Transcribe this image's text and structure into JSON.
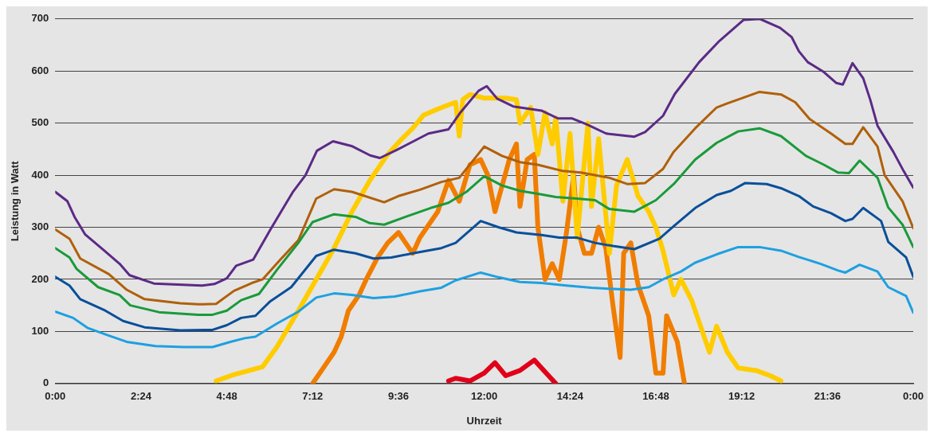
{
  "chart_data": {
    "type": "line",
    "xlabel": "Uhrzeit",
    "ylabel": "Leistung in Watt",
    "xlim": [
      0,
      24
    ],
    "ylim": [
      0,
      700
    ],
    "xticks": [
      {
        "value": 0,
        "label": "0:00"
      },
      {
        "value": 2.4,
        "label": "2:24"
      },
      {
        "value": 4.8,
        "label": "4:48"
      },
      {
        "value": 7.2,
        "label": "7:12"
      },
      {
        "value": 9.6,
        "label": "9:36"
      },
      {
        "value": 12,
        "label": "12:00"
      },
      {
        "value": 14.4,
        "label": "14:24"
      },
      {
        "value": 16.8,
        "label": "16:48"
      },
      {
        "value": 19.2,
        "label": "19:12"
      },
      {
        "value": 21.6,
        "label": "21:36"
      },
      {
        "value": 24,
        "label": "0:00"
      }
    ],
    "yticks": [
      0,
      100,
      200,
      300,
      400,
      500,
      600,
      700
    ],
    "grid": "y",
    "legend": false,
    "marker": "none",
    "line_style": "solid",
    "series": [
      {
        "color": "#1ea0e0",
        "x": [
          0,
          0.5,
          0.9,
          1.5,
          2,
          2.8,
          3.6,
          4.4,
          4.9,
          5.3,
          5.6,
          6.2,
          6.8,
          7.3,
          7.8,
          8.3,
          8.9,
          9.5,
          10.2,
          10.8,
          11.2,
          11.9,
          12.4,
          13,
          13.6,
          14.3,
          15,
          15.5,
          16.1,
          16.6,
          17,
          17.5,
          17.9,
          18.5,
          19.1,
          19.7,
          20.3,
          20.8,
          21.4,
          21.9,
          22.1,
          22.5,
          23,
          23.3,
          23.8,
          24
        ],
        "values": [
          138,
          126,
          107,
          92,
          80,
          72,
          70,
          70,
          80,
          87,
          90,
          115,
          138,
          165,
          173,
          170,
          164,
          167,
          177,
          184,
          198,
          213,
          204,
          195,
          193,
          188,
          184,
          182,
          180,
          185,
          200,
          215,
          232,
          248,
          262,
          262,
          255,
          243,
          230,
          217,
          213,
          228,
          215,
          185,
          168,
          136
        ]
      },
      {
        "color": "#0a4f9a",
        "x": [
          0,
          0.4,
          0.7,
          1.4,
          1.9,
          2.5,
          3.5,
          4.4,
          4.8,
          5.2,
          5.6,
          6,
          6.6,
          7.3,
          7.8,
          8.4,
          8.9,
          9.4,
          10,
          10.8,
          11.2,
          11.9,
          12.4,
          12.9,
          13.6,
          14.1,
          14.6,
          15.1,
          15.6,
          16.2,
          16.9,
          17.3,
          17.9,
          18.5,
          18.9,
          19.3,
          19.9,
          20.3,
          20.8,
          21.2,
          21.7,
          22.1,
          22.3,
          22.6,
          23.1,
          23.3,
          23.8,
          24
        ],
        "values": [
          205,
          188,
          162,
          140,
          120,
          108,
          102,
          103,
          112,
          126,
          130,
          157,
          185,
          245,
          257,
          250,
          240,
          242,
          250,
          260,
          270,
          312,
          300,
          290,
          285,
          280,
          280,
          270,
          264,
          258,
          278,
          302,
          337,
          362,
          370,
          385,
          383,
          375,
          360,
          340,
          327,
          312,
          316,
          337,
          312,
          272,
          242,
          205
        ]
      },
      {
        "color": "#1a9a3a",
        "x": [
          0,
          0.4,
          0.6,
          1.2,
          1.8,
          2.1,
          2.9,
          4,
          4.4,
          4.8,
          5.2,
          5.7,
          6.2,
          6.8,
          7.2,
          7.8,
          8.4,
          8.8,
          9.2,
          9.8,
          10.5,
          11,
          11.5,
          12,
          12.5,
          13,
          13.6,
          14,
          14.6,
          15.1,
          15.5,
          16.2,
          16.8,
          17.3,
          17.9,
          18.5,
          19.1,
          19.7,
          20.3,
          21,
          21.5,
          21.9,
          22.2,
          22.5,
          23,
          23.3,
          23.7,
          24
        ],
        "values": [
          260,
          242,
          220,
          185,
          170,
          150,
          137,
          132,
          132,
          140,
          160,
          172,
          218,
          270,
          310,
          325,
          320,
          308,
          305,
          320,
          337,
          347,
          368,
          398,
          380,
          370,
          363,
          358,
          355,
          352,
          335,
          330,
          352,
          383,
          430,
          462,
          484,
          490,
          475,
          437,
          420,
          405,
          404,
          428,
          395,
          338,
          305,
          262
        ]
      },
      {
        "color": "#b0600a",
        "x": [
          0,
          0.4,
          0.7,
          1.5,
          2,
          2.5,
          3.5,
          4,
          4.5,
          5,
          5.5,
          5.8,
          6.3,
          6.8,
          7.3,
          7.8,
          8.3,
          9.2,
          9.6,
          10.2,
          10.8,
          11.3,
          12,
          12.5,
          13,
          13.5,
          14.2,
          14.7,
          15.5,
          16,
          16.5,
          17,
          17.3,
          17.9,
          18.5,
          18.8,
          19.3,
          19.7,
          20.3,
          20.7,
          21.1,
          21.7,
          22.1,
          22.3,
          22.6,
          23,
          23.2,
          23.7,
          24
        ],
        "values": [
          296,
          278,
          240,
          210,
          180,
          162,
          154,
          152,
          153,
          178,
          193,
          200,
          238,
          275,
          355,
          373,
          368,
          348,
          360,
          372,
          387,
          395,
          455,
          437,
          425,
          420,
          408,
          405,
          395,
          383,
          385,
          412,
          445,
          490,
          530,
          538,
          550,
          560,
          555,
          540,
          508,
          480,
          460,
          460,
          492,
          455,
          400,
          350,
          298
        ]
      },
      {
        "color": "#5b2a86",
        "x": [
          0,
          0.34,
          0.54,
          0.84,
          1.36,
          1.8,
          2.08,
          2.76,
          4.1,
          4.45,
          4.8,
          5.06,
          5.54,
          6.03,
          6.64,
          7,
          7.32,
          7.77,
          8.29,
          8.81,
          9.08,
          9.54,
          10.44,
          11,
          11.34,
          11.84,
          12.07,
          12.36,
          12.81,
          13.6,
          14.06,
          14.46,
          14.85,
          15.41,
          16.2,
          16.5,
          17,
          17.33,
          18.01,
          18.58,
          19.25,
          19.71,
          20.27,
          20.6,
          20.8,
          21.05,
          21.5,
          21.85,
          22.03,
          22.3,
          22.6,
          22.8,
          23,
          23.44,
          23.73,
          24
        ],
        "values": [
          368,
          350,
          320,
          286,
          256,
          230,
          208,
          192,
          188,
          191,
          202,
          226,
          238,
          297,
          367,
          400,
          447,
          465,
          456,
          438,
          433,
          448,
          480,
          488,
          521,
          562,
          571,
          547,
          532,
          524,
          509,
          509,
          498,
          480,
          474,
          483,
          514,
          556,
          617,
          658,
          698,
          700,
          683,
          665,
          638,
          617,
          598,
          577,
          574,
          615,
          586,
          544,
          495,
          445,
          408,
          376
        ]
      },
      {
        "color": "#ffcc00",
        "x": [
          4.5,
          5,
          5.8,
          6.2,
          6.8,
          7.3,
          7.8,
          8.3,
          8.8,
          9.3,
          9.7,
          10,
          10.3,
          10.7,
          11,
          11.2,
          11.3,
          11.4,
          11.6,
          12,
          12.6,
          12.9,
          13,
          13.3,
          13.5,
          13.7,
          13.9,
          14,
          14.2,
          14.4,
          14.6,
          14.9,
          15,
          15.2,
          15.5,
          15.7,
          16,
          16.3,
          16.6,
          16.8,
          17,
          17.3,
          17.5,
          17.8,
          18.1,
          18.3,
          18.5,
          18.8,
          19.1,
          19.6,
          20,
          20.3
        ],
        "values": [
          5,
          17,
          32,
          70,
          140,
          200,
          260,
          330,
          390,
          440,
          470,
          490,
          515,
          527,
          535,
          540,
          475,
          545,
          555,
          548,
          548,
          545,
          500,
          530,
          440,
          520,
          460,
          510,
          350,
          480,
          280,
          500,
          340,
          470,
          250,
          380,
          430,
          360,
          330,
          300,
          255,
          170,
          200,
          160,
          100,
          60,
          110,
          60,
          30,
          25,
          15,
          5
        ]
      },
      {
        "color": "#f07d00",
        "x": [
          7.2,
          7.5,
          7.8,
          8,
          8.2,
          8.5,
          8.7,
          9,
          9.3,
          9.6,
          9.8,
          10,
          10.2,
          10.4,
          10.7,
          11,
          11.3,
          11.6,
          11.9,
          12.1,
          12.3,
          12.5,
          12.7,
          12.9,
          13,
          13.2,
          13.4,
          13.5,
          13.7,
          13.9,
          14.1,
          14.3,
          14.5,
          14.6,
          14.8,
          15,
          15.2,
          15.4,
          15.6,
          15.8,
          15.9,
          16.1,
          16.3,
          16.6,
          16.8,
          17,
          17.1,
          17.4,
          17.6
        ],
        "values": [
          0,
          30,
          60,
          90,
          140,
          170,
          200,
          240,
          270,
          290,
          270,
          250,
          280,
          300,
          330,
          390,
          350,
          420,
          430,
          400,
          330,
          380,
          430,
          460,
          340,
          430,
          440,
          300,
          200,
          230,
          200,
          290,
          400,
          300,
          250,
          250,
          300,
          260,
          150,
          50,
          250,
          270,
          190,
          130,
          20,
          20,
          130,
          80,
          0
        ]
      },
      {
        "color": "#e0001a",
        "x": [
          11,
          11.2,
          11.6,
          12,
          12.3,
          12.6,
          13,
          13.4,
          13.8,
          14
        ],
        "values": [
          5,
          10,
          5,
          20,
          40,
          15,
          25,
          45,
          15,
          0
        ]
      }
    ]
  }
}
